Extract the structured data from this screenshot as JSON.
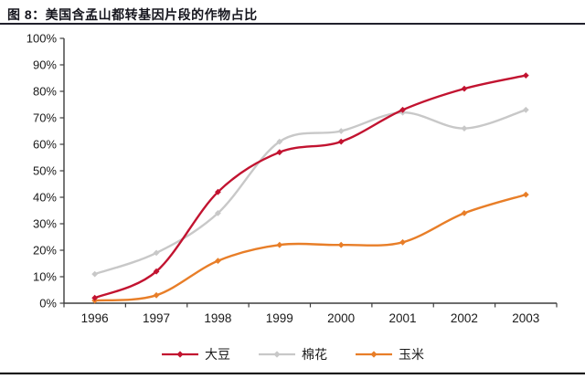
{
  "header": {
    "title": "图 8：美国含孟山都转基因片段的作物占比"
  },
  "colors": {
    "soybean_line": "#c21330",
    "cotton_line": "#c8c8c8",
    "corn_line": "#e87e28",
    "axis": "#3d3d3d",
    "title_text": "#15151d",
    "rule": "#20202c"
  },
  "chart_data": {
    "type": "line",
    "title": "美国含孟山都转基因片段的作物占比",
    "categories": [
      "1996",
      "1997",
      "1998",
      "1999",
      "2000",
      "2001",
      "2002",
      "2003"
    ],
    "series": [
      {
        "key": "soybean",
        "name": "大豆",
        "color": "#c21330",
        "values": [
          2,
          12,
          42,
          57,
          61,
          73,
          81,
          86
        ]
      },
      {
        "key": "cotton",
        "name": "棉花",
        "color": "#c8c8c8",
        "values": [
          11,
          19,
          34,
          61,
          65,
          72,
          66,
          73
        ]
      },
      {
        "key": "corn",
        "name": "玉米",
        "color": "#e87e28",
        "values": [
          1,
          3,
          16,
          22,
          22,
          23,
          34,
          41
        ]
      }
    ],
    "xlabel": "",
    "ylabel": "",
    "ylim": [
      0,
      100
    ],
    "ytick_step": 10,
    "yticklabels": [
      "0%",
      "10%",
      "20%",
      "30%",
      "40%",
      "50%",
      "60%",
      "70%",
      "80%",
      "90%",
      "100%"
    ],
    "grid": false,
    "legend_position": "bottom",
    "line_style": "smooth",
    "marker": "diamond"
  }
}
